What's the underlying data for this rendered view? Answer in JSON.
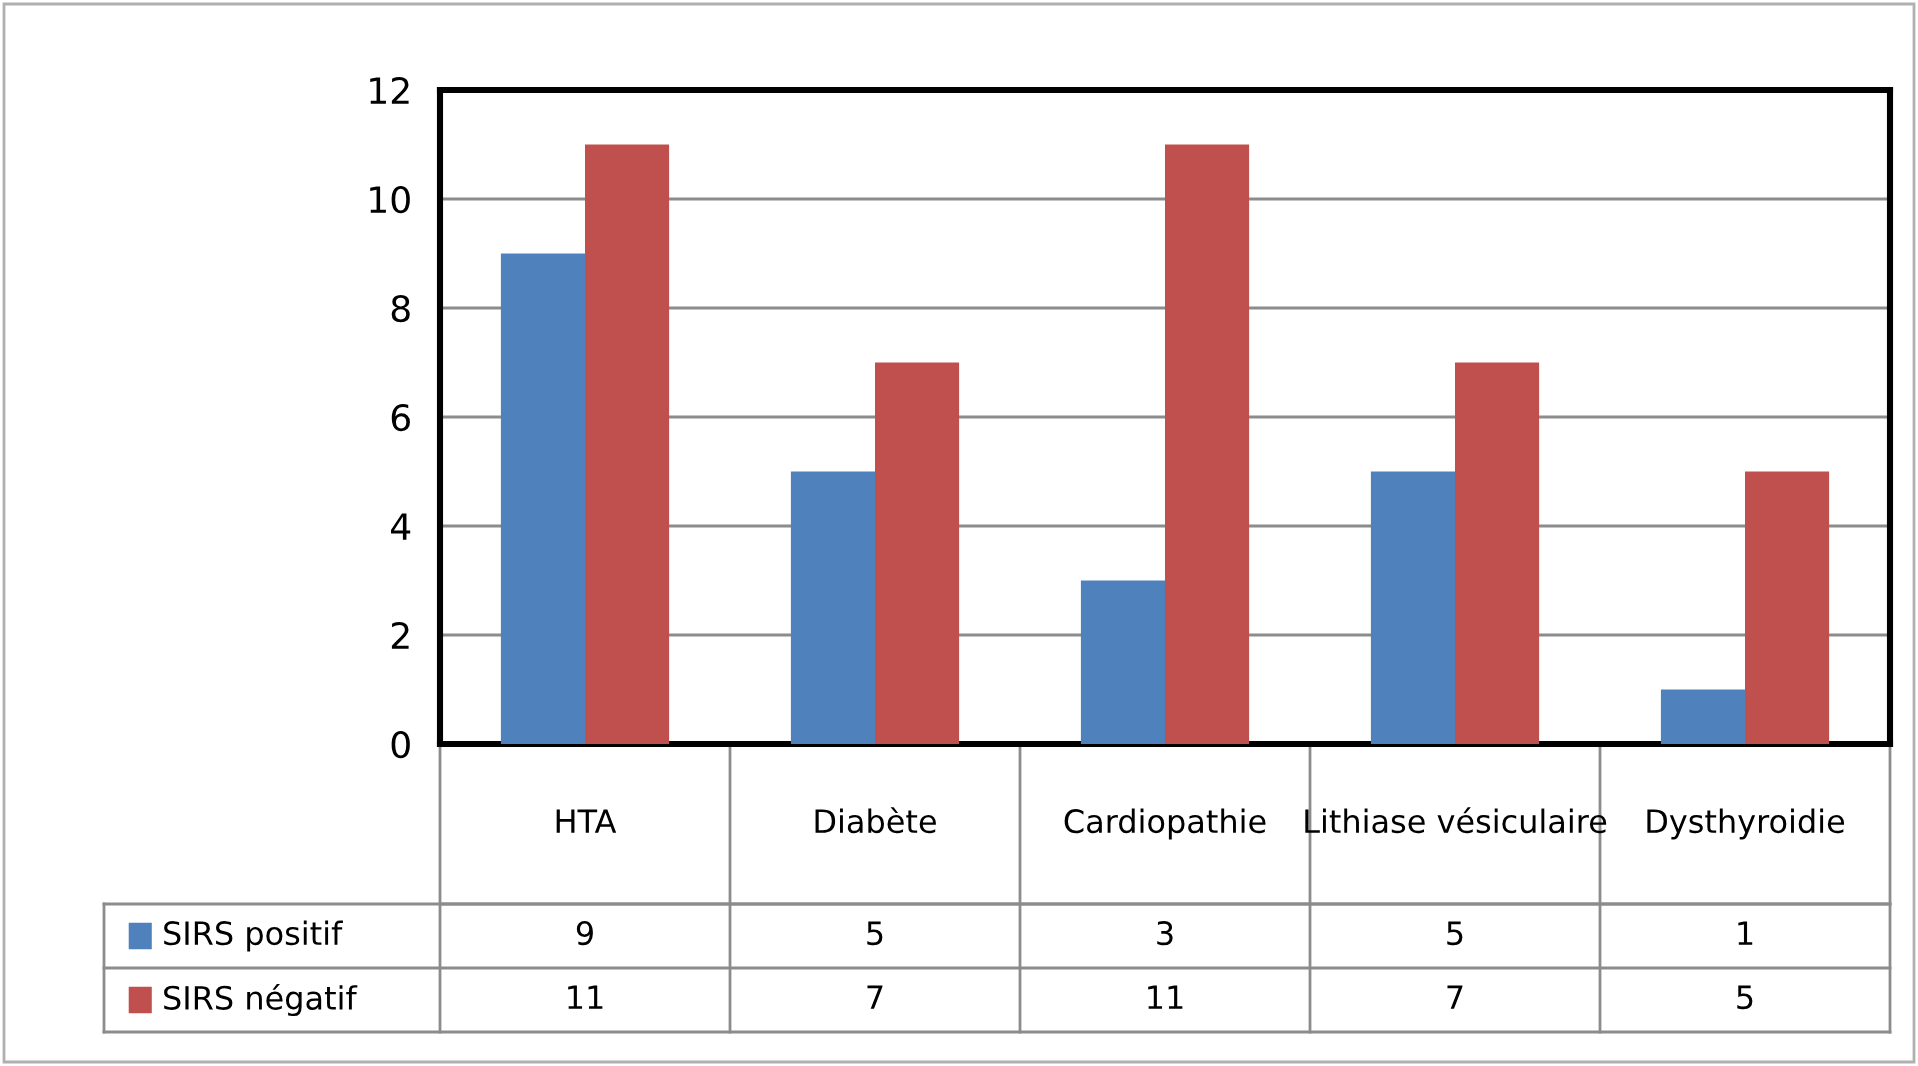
{
  "chart_data": {
    "type": "bar",
    "categories": [
      "HTA",
      "Diabète",
      "Cardiopathie",
      "Lithiase vésiculaire",
      "Dysthyroidie"
    ],
    "series": [
      {
        "name": "SIRS positif",
        "color": "#4f81bd",
        "values": [
          9,
          5,
          3,
          5,
          1
        ]
      },
      {
        "name": "SIRS négatif",
        "color": "#c0504d",
        "values": [
          11,
          7,
          11,
          7,
          5
        ]
      }
    ],
    "ylim": [
      0,
      12
    ],
    "yticks": [
      0,
      2,
      4,
      6,
      8,
      10,
      12
    ],
    "grid": "y",
    "legend": "bottom",
    "data_labels": true
  }
}
